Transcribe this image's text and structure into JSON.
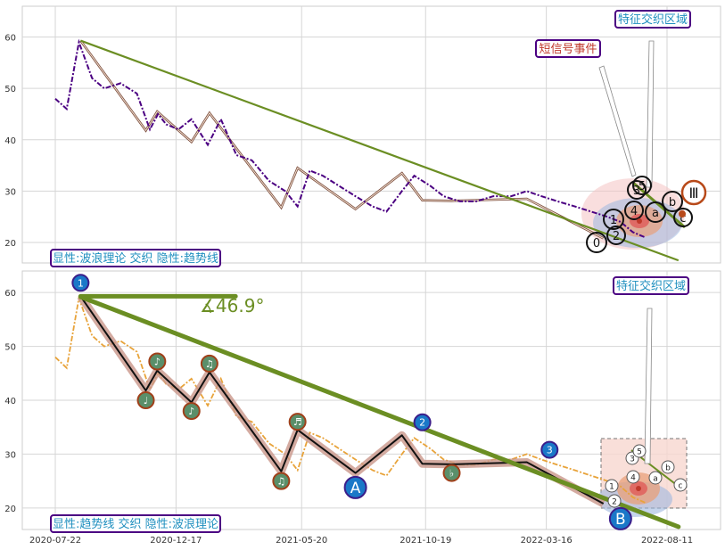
{
  "chart_data": [
    {
      "type": "line",
      "panel": "top",
      "ylim": [
        16,
        66
      ],
      "yticks": [
        20,
        30,
        40,
        50,
        60
      ],
      "x_dates": [
        "2020-07-22",
        "2020-12-17",
        "2021-05-20",
        "2021-10-19",
        "2022-03-16",
        "2022-08-11"
      ],
      "series": [
        {
          "style": "dash-dot",
          "color": "#4b0082",
          "x": [
            "2020-07-22",
            "2020-08-05",
            "2020-08-20",
            "2020-09-05",
            "2020-09-20",
            "2020-10-10",
            "2020-10-30",
            "2020-11-15",
            "2020-11-25",
            "2020-12-05",
            "2020-12-20",
            "2021-01-05",
            "2021-01-25",
            "2021-02-10",
            "2021-03-01",
            "2021-03-20",
            "2021-04-10",
            "2021-04-30",
            "2021-05-15",
            "2021-05-30",
            "2021-06-15",
            "2021-07-05",
            "2021-07-25",
            "2021-08-15",
            "2021-09-01",
            "2021-09-20",
            "2021-10-05",
            "2021-10-25",
            "2021-11-10",
            "2021-11-30",
            "2021-12-20",
            "2022-01-10",
            "2022-02-01",
            "2022-02-20",
            "2022-03-10",
            "2022-03-30",
            "2022-04-20",
            "2022-05-10",
            "2022-05-30",
            "2022-06-15",
            "2022-06-30",
            "2022-07-15"
          ],
          "values": [
            48,
            46,
            59,
            52,
            50,
            51,
            49,
            42,
            45,
            43,
            42,
            44,
            39,
            44,
            37,
            36,
            32,
            30,
            27,
            34,
            33,
            31,
            29,
            27,
            26,
            30,
            33,
            31,
            29,
            28,
            28,
            29,
            29,
            30,
            29,
            28,
            27,
            26,
            25,
            24,
            22,
            21
          ]
        }
      ],
      "trend_lines": [
        {
          "name": "main-trend",
          "points": [
            [
              "2020-08-22",
              59.3
            ],
            [
              "2022-08-25",
              16.5
            ]
          ],
          "color": "#6b8e23"
        }
      ],
      "wave_path": {
        "x": [
          "2020-08-22",
          "2020-11-10",
          "2020-11-24",
          "2021-01-05",
          "2021-01-27",
          "2021-04-25",
          "2021-05-15",
          "2021-07-25",
          "2021-09-20",
          "2021-10-15",
          "2021-11-20",
          "2022-02-20",
          "2022-05-25"
        ],
        "values": [
          59.3,
          41.8,
          45.5,
          39.6,
          45.2,
          26.8,
          34.5,
          26.5,
          33.5,
          28.2,
          28.1,
          28.5,
          20.8
        ]
      },
      "signal_markers": [
        "0",
        "1",
        "2",
        "3",
        "4",
        "5",
        "a",
        "b",
        "c",
        "Ⅲ"
      ]
    },
    {
      "type": "line",
      "panel": "bottom",
      "ylim": [
        16,
        64
      ],
      "yticks": [
        20,
        30,
        40,
        50,
        60
      ],
      "series": [
        {
          "style": "dash-dot",
          "color": "#e8a33a",
          "x": [
            "2020-07-22",
            "2020-08-05",
            "2020-08-20",
            "2020-09-05",
            "2020-09-20",
            "2020-10-10",
            "2020-10-30",
            "2020-11-15",
            "2020-11-25",
            "2020-12-05",
            "2020-12-20",
            "2021-01-05",
            "2021-01-25",
            "2021-02-10",
            "2021-03-01",
            "2021-03-20",
            "2021-04-10",
            "2021-04-30",
            "2021-05-15",
            "2021-05-30",
            "2021-06-15",
            "2021-07-05",
            "2021-07-25",
            "2021-08-15",
            "2021-09-01",
            "2021-09-20",
            "2021-10-05",
            "2021-10-25",
            "2021-11-10",
            "2021-11-30",
            "2021-12-20",
            "2022-01-10",
            "2022-02-01",
            "2022-02-20",
            "2022-03-10",
            "2022-03-30",
            "2022-04-20",
            "2022-05-10",
            "2022-05-30",
            "2022-06-15",
            "2022-06-30",
            "2022-07-15"
          ],
          "values": [
            48,
            46,
            59,
            52,
            50,
            51,
            49,
            42,
            45,
            43,
            42,
            44,
            39,
            44,
            37,
            36,
            32,
            30,
            27,
            34,
            33,
            31,
            29,
            27,
            26,
            30,
            33,
            31,
            29,
            28,
            28,
            29,
            29,
            30,
            29,
            28,
            27,
            26,
            25,
            24,
            22,
            21
          ]
        }
      ],
      "trend_lines": [
        {
          "name": "main-trend",
          "points": [
            [
              "2020-08-22",
              59.2
            ],
            [
              "2022-08-25",
              16.5
            ]
          ],
          "color": "#6b8e23"
        },
        {
          "name": "flat-line",
          "points": [
            [
              "2020-08-22",
              59.3
            ],
            [
              "2021-02-28",
              59.3
            ]
          ],
          "color": "#6b8e23"
        }
      ],
      "wave_path": {
        "x": [
          "2020-08-22",
          "2020-11-10",
          "2020-11-24",
          "2021-01-05",
          "2021-01-27",
          "2021-04-25",
          "2021-05-15",
          "2021-07-25",
          "2021-09-20",
          "2021-10-15",
          "2021-11-20",
          "2022-02-20",
          "2022-05-25"
        ],
        "values": [
          59.3,
          41.8,
          45.5,
          39.6,
          45.2,
          26.8,
          34.5,
          26.5,
          33.5,
          28.2,
          28.1,
          28.5,
          20.8
        ]
      },
      "markers": [
        {
          "label": "1",
          "x": "2020-08-22",
          "y": 61.8,
          "kind": "blue"
        },
        {
          "label": "♩",
          "x": "2020-11-10",
          "y": 40.0,
          "kind": "green"
        },
        {
          "label": "♪",
          "x": "2020-11-24",
          "y": 47.2,
          "kind": "green"
        },
        {
          "label": "♪",
          "x": "2021-01-05",
          "y": 38.0,
          "kind": "green"
        },
        {
          "label": "♫",
          "x": "2021-01-27",
          "y": 46.8,
          "kind": "green"
        },
        {
          "label": "♫",
          "x": "2021-04-25",
          "y": 25.0,
          "kind": "green"
        },
        {
          "label": "♬",
          "x": "2021-05-15",
          "y": 36.0,
          "kind": "green"
        },
        {
          "label": "A",
          "x": "2021-07-25",
          "y": 23.8,
          "kind": "blue-large"
        },
        {
          "label": "2",
          "x": "2021-10-15",
          "y": 35.9,
          "kind": "blue"
        },
        {
          "label": "♭",
          "x": "2021-11-20",
          "y": 26.5,
          "kind": "green"
        },
        {
          "label": "3",
          "x": "2022-03-20",
          "y": 30.8,
          "kind": "blue"
        },
        {
          "label": "B",
          "x": "2022-06-15",
          "y": 18.0,
          "kind": "blue-large"
        }
      ]
    }
  ],
  "panels": {
    "top": {
      "feature_zone": "特征交织区域",
      "short_signal": "短信号事件",
      "explicit_label": "显性:波浪理论 交织 隐性:趋势线"
    },
    "bottom": {
      "feature_zone": "特征交织区域",
      "explicit_label": "显性:趋势线 交织 隐性:波浪理论",
      "angle_label": "∡46.9°"
    }
  }
}
